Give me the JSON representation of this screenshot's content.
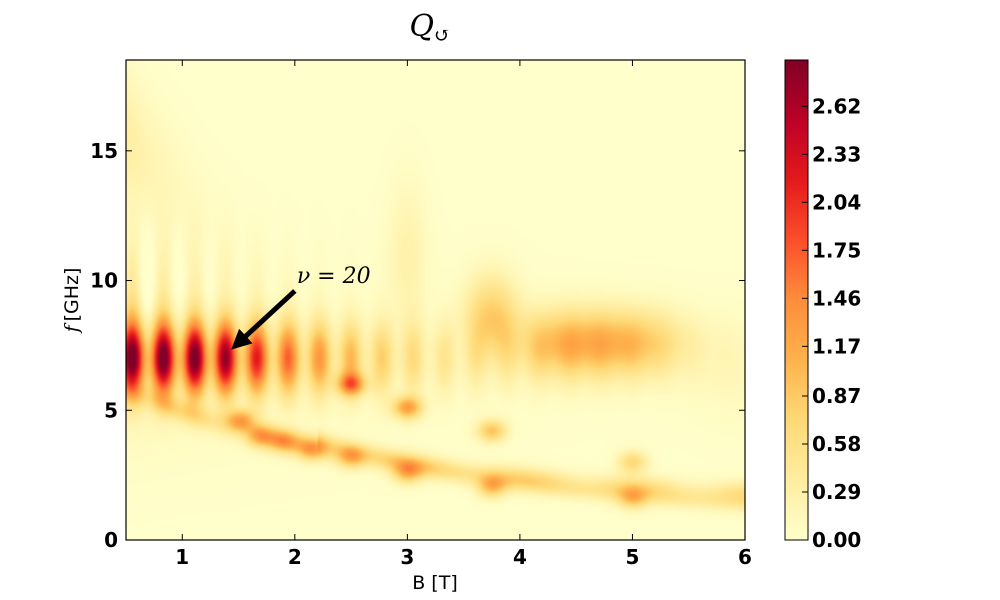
{
  "chart_data": {
    "type": "heatmap",
    "title": "Q",
    "title_subscript": "↺",
    "xlabel": "B [T]",
    "ylabel_symbol": "f",
    "ylabel_unit": "[GHz]",
    "xlim": [
      0.5,
      6
    ],
    "ylim": [
      0,
      18.5
    ],
    "x_ticks": [
      1,
      2,
      3,
      4,
      5,
      6
    ],
    "y_ticks": [
      0,
      5,
      10,
      15
    ],
    "colormap": "YlOrRd",
    "colormap_stops": [
      "#ffffcc",
      "#ffeda0",
      "#fed976",
      "#feb24c",
      "#fd8d3c",
      "#fc4e2a",
      "#e31a1c",
      "#bd0026",
      "#800026"
    ],
    "colorbar": {
      "min": 0.0,
      "max": 2.9,
      "ticks": [
        "0.00",
        "0.29",
        "0.58",
        "0.87",
        "1.17",
        "1.46",
        "1.75",
        "2.04",
        "2.33",
        "2.62"
      ]
    },
    "annotation": {
      "text": "ν = 20",
      "arrow_from": [
        2.0,
        9.6
      ],
      "arrow_to": [
        1.5,
        7.6
      ]
    },
    "features": [
      {
        "name": "main resonance band",
        "b_start": 0.5,
        "b_end": 2.5,
        "f_center": 7.0,
        "peak_value": 2.8
      },
      {
        "name": "upper plateau",
        "b_start": 3.6,
        "b_end": 5.6,
        "f_center": 7.6,
        "peak_value": 1.2
      },
      {
        "name": "lower branch",
        "b_start": 0.5,
        "b_end": 6.0,
        "f_at_start": 5.5,
        "f_at_end": 2.0
      },
      {
        "name": "lowest branch",
        "b_start": 2.3,
        "b_end": 6.0,
        "f_at_start": 3.4,
        "f_at_end": 1.3
      }
    ],
    "grid": false
  }
}
